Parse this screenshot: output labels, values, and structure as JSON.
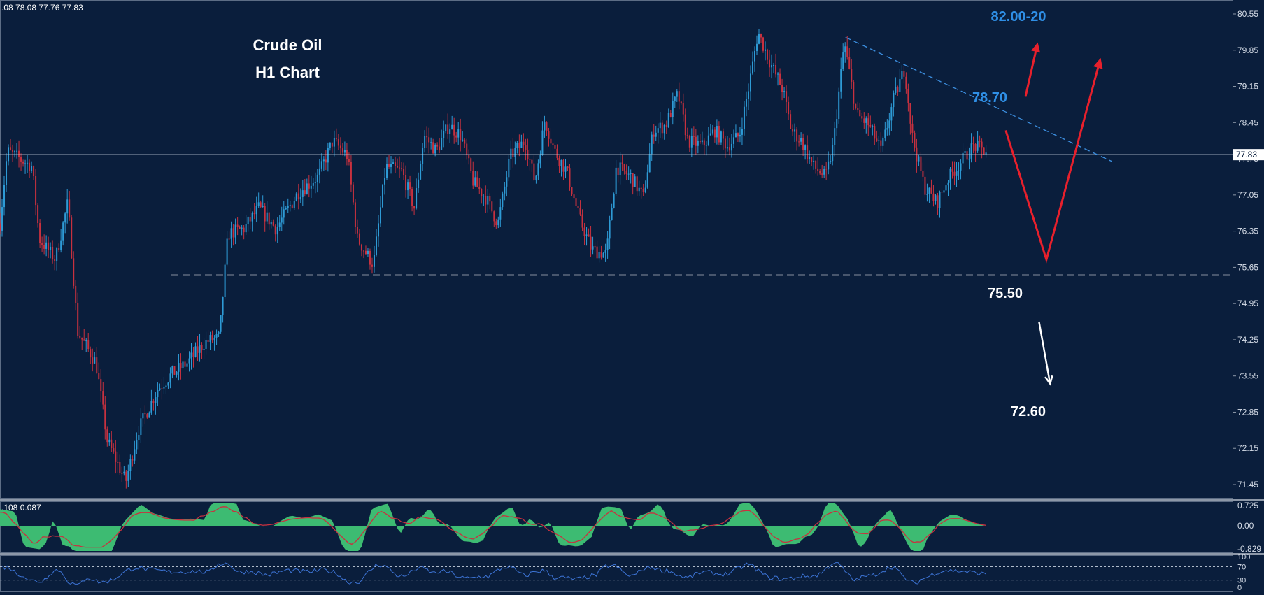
{
  "colors": {
    "background": "#0a1e3c",
    "axis_text": "#d6dde8",
    "candle_up": "#2e9bd6",
    "candle_down": "#c8313f",
    "macd_hist": "#3dbb72",
    "signal_line": "#c8313f",
    "rsi_line": "#3d74d6",
    "annotation_blue": "#2f8fe6",
    "annotation_white": "#ffffff",
    "arrow_red": "#e8202c",
    "trendline": "#3c8fe0"
  },
  "header": {
    "ohlc_text": ".08 78.08 77.76 77.83"
  },
  "chart_data": [
    {
      "type": "candlestick",
      "title": "Crude Oil",
      "subtitle": "H1 Chart",
      "ylim": [
        71.2,
        80.9
      ],
      "y_ticks": [
        "80.55",
        "79.85",
        "79.15",
        "78.45",
        "77.75",
        "77.05",
        "76.35",
        "75.65",
        "74.95",
        "74.25",
        "73.55",
        "72.85",
        "72.15",
        "71.45"
      ],
      "current_price": "77.83",
      "support_level": {
        "value": 75.5,
        "label": "75.50"
      },
      "annotations": {
        "target_high": "82.00-20",
        "resistance": "78.70",
        "target_low": "72.60"
      },
      "price_path": [
        [
          0,
          76.5
        ],
        [
          0.6,
          77.9
        ],
        [
          2.6,
          77.6
        ],
        [
          3.2,
          76.2
        ],
        [
          4.5,
          75.8
        ],
        [
          5.5,
          76.9
        ],
        [
          6.3,
          74.4
        ],
        [
          7.8,
          73.8
        ],
        [
          8.7,
          72.3
        ],
        [
          10.2,
          71.5
        ],
        [
          11.2,
          72.5
        ],
        [
          12.8,
          73.3
        ],
        [
          14.0,
          73.6
        ],
        [
          15.2,
          73.8
        ],
        [
          16.6,
          74.2
        ],
        [
          17.8,
          74.3
        ],
        [
          18.5,
          76.3
        ],
        [
          19.8,
          76.4
        ],
        [
          21.0,
          76.8
        ],
        [
          22.4,
          76.4
        ],
        [
          24.2,
          77.1
        ],
        [
          25.8,
          77.4
        ],
        [
          27.0,
          78.1
        ],
        [
          28.2,
          77.8
        ],
        [
          29.0,
          76.2
        ],
        [
          30.3,
          75.7
        ],
        [
          31.3,
          77.6
        ],
        [
          32.6,
          77.5
        ],
        [
          33.6,
          76.8
        ],
        [
          34.4,
          78.2
        ],
        [
          35.4,
          77.9
        ],
        [
          36.4,
          78.4
        ],
        [
          37.4,
          78.2
        ],
        [
          38.4,
          77.3
        ],
        [
          39.4,
          77.0
        ],
        [
          40.4,
          76.5
        ],
        [
          41.4,
          77.8
        ],
        [
          42.6,
          78.1
        ],
        [
          43.4,
          77.3
        ],
        [
          44.2,
          78.5
        ],
        [
          45.0,
          77.9
        ],
        [
          46.0,
          77.5
        ],
        [
          47.0,
          76.6
        ],
        [
          48.0,
          76.0
        ],
        [
          49.2,
          75.9
        ],
        [
          50.0,
          77.6
        ],
        [
          51.2,
          77.4
        ],
        [
          52.2,
          77.0
        ],
        [
          53.0,
          78.3
        ],
        [
          54.0,
          78.4
        ],
        [
          55.0,
          79.0
        ],
        [
          55.8,
          78.1
        ],
        [
          57.0,
          78.0
        ],
        [
          58.0,
          78.3
        ],
        [
          59.0,
          78.0
        ],
        [
          60.0,
          78.2
        ],
        [
          60.8,
          79.2
        ],
        [
          61.5,
          80.2
        ],
        [
          62.5,
          79.6
        ],
        [
          63.5,
          79.1
        ],
        [
          64.2,
          78.3
        ],
        [
          65.0,
          78.1
        ],
        [
          66.0,
          77.6
        ],
        [
          67.0,
          77.4
        ],
        [
          67.6,
          78.0
        ],
        [
          68.5,
          80.0
        ],
        [
          69.5,
          78.6
        ],
        [
          70.5,
          78.4
        ],
        [
          71.5,
          77.9
        ],
        [
          72.5,
          78.9
        ],
        [
          73.4,
          79.5
        ],
        [
          74.0,
          78.2
        ],
        [
          75.0,
          77.2
        ],
        [
          76.0,
          76.9
        ],
        [
          77.0,
          77.4
        ],
        [
          78.0,
          77.7
        ],
        [
          79.0,
          78.0
        ],
        [
          80.0,
          77.9
        ]
      ],
      "projection_path": [
        [
          81.6,
          78.3
        ],
        [
          84.9,
          75.8
        ],
        [
          89.3,
          79.7
        ]
      ],
      "trendline": [
        [
          68.6,
          80.1
        ],
        [
          90.2,
          77.7
        ]
      ],
      "arrow_up_short": [
        [
          83.2,
          78.95
        ],
        [
          84.2,
          80.0
        ]
      ],
      "arrow_down_white": [
        [
          84.3,
          74.6
        ],
        [
          85.2,
          73.4
        ]
      ],
      "macd": {
        "header": ".108 0.087",
        "ylim": [
          -0.95,
          0.85
        ],
        "y_ticks": [
          "0.725",
          "0.00",
          "-0.829"
        ]
      },
      "rsi": {
        "levels": [
          70,
          30
        ],
        "y_ticks": [
          "100",
          "70",
          "30",
          "0"
        ]
      }
    }
  ]
}
